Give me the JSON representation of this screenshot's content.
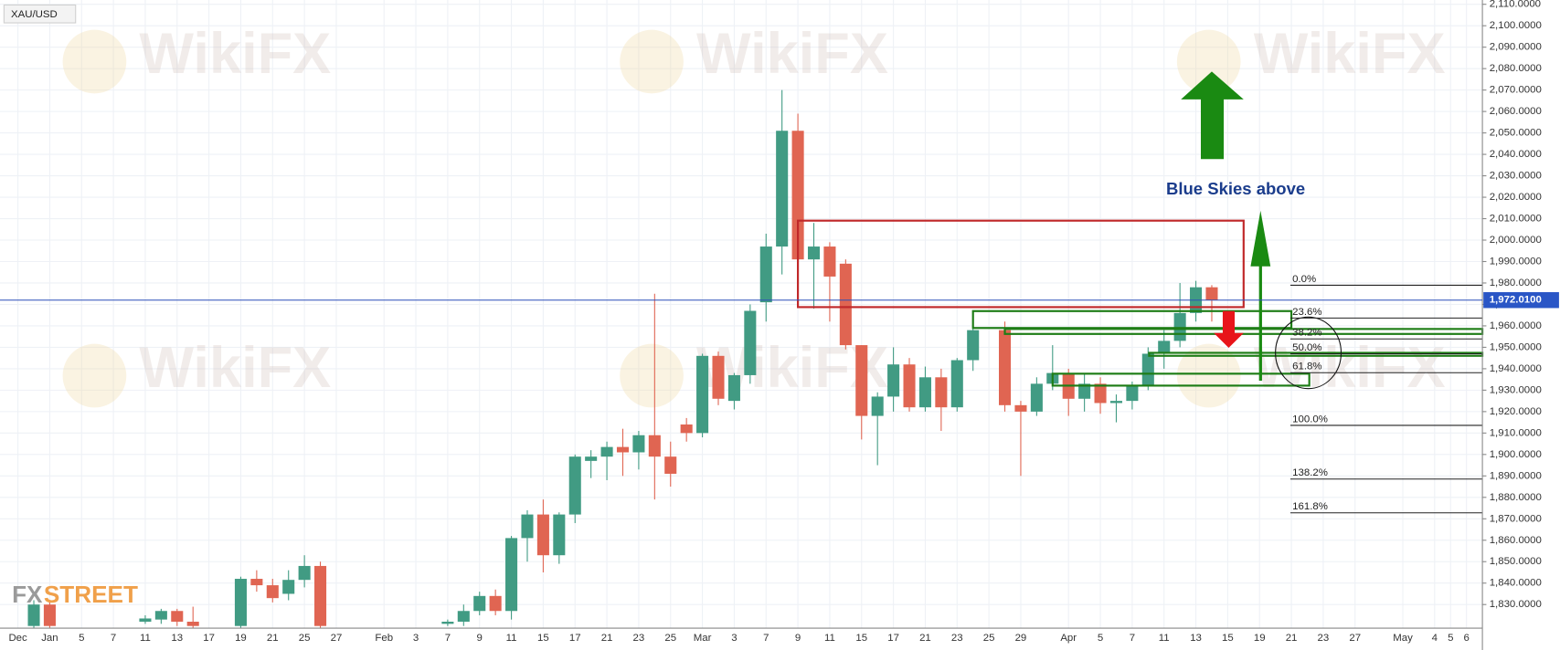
{
  "chart_data": {
    "type": "candlestick",
    "symbol": "XAU/USD",
    "watermark": "WikiFX",
    "logo_left": "FX",
    "logo_right": "STREET",
    "annotation": "Blue Skies above",
    "fib_levels": [
      "0.0%",
      "23.6%",
      "38.2%",
      "50.0%",
      "61.8%",
      "100.0%",
      "138.2%",
      "161.8%"
    ],
    "up_color": "#419b83",
    "down_color": "#e06552",
    "grid": true,
    "categories": [
      "Dec",
      null,
      "Jan",
      null,
      "5",
      null,
      "7",
      null,
      "11",
      null,
      "13",
      null,
      "17",
      null,
      "19",
      null,
      "21",
      null,
      "25",
      null,
      "27",
      null,
      null,
      "Feb",
      null,
      "3",
      null,
      "7",
      null,
      "9",
      null,
      "11",
      null,
      "15",
      null,
      "17",
      null,
      "21",
      null,
      "23",
      null,
      "25",
      null,
      "Mar",
      null,
      "3",
      null,
      "7",
      null,
      "9",
      null,
      "11",
      null,
      "15",
      null,
      "17",
      null,
      "21",
      null,
      "23",
      null,
      "25",
      null,
      "29",
      null,
      null,
      "Apr",
      null,
      "5",
      null,
      "7",
      null,
      "11",
      null,
      "13",
      null,
      "15",
      null,
      "19",
      null,
      "21",
      null,
      "23",
      null,
      "27",
      null,
      null,
      "May",
      null,
      "4",
      "5",
      "6"
    ],
    "open": [
      null,
      1820,
      1830,
      null,
      null,
      null,
      null,
      null,
      1822,
      1823,
      1827,
      1822,
      null,
      null,
      1820,
      1842,
      1839,
      1835,
      1841.5,
      1848,
      null,
      null,
      null,
      null,
      null,
      null,
      null,
      1821,
      1822,
      1827,
      1834,
      1827,
      1861,
      1872,
      1853,
      1872,
      1897,
      1899,
      1903.5,
      1901,
      1909,
      1899,
      1914,
      1910,
      1946,
      1925,
      1937,
      1971,
      1997,
      2051,
      1991,
      1997,
      1989,
      1951,
      1918,
      1927,
      1942,
      1922,
      1936,
      1922,
      1944,
      null,
      1958,
      1923,
      1920,
      1933,
      1938,
      1926,
      1933,
      1924,
      1925,
      1932,
      1947,
      1953,
      1966,
      1978,
      null,
      null,
      null,
      null,
      null,
      null,
      null,
      null,
      null,
      null,
      null,
      null,
      null,
      null,
      null,
      null
    ],
    "high": [
      null,
      1832,
      1832,
      null,
      null,
      null,
      null,
      null,
      1825,
      1828,
      1828,
      1829,
      null,
      null,
      1843,
      1846,
      1842,
      1846,
      1853,
      1850,
      null,
      null,
      null,
      null,
      null,
      null,
      null,
      1823,
      1830,
      1836,
      1837,
      1862,
      1874,
      1879,
      1873,
      1900,
      1902,
      1906,
      1912,
      1911,
      1975,
      1906,
      1917,
      1947,
      1948,
      1938,
      1970,
      2003,
      2070,
      2059,
      2008,
      1999,
      1991,
      1951,
      1929,
      1950,
      1945,
      1941,
      1940,
      1945,
      1963,
      null,
      1962,
      1925,
      1936,
      1951,
      1940,
      1938,
      1936,
      1928,
      1934,
      1950,
      1958,
      1980,
      1981,
      1979,
      null,
      null,
      null,
      null,
      null,
      null,
      null,
      null,
      null,
      null,
      null,
      null,
      null,
      null,
      null,
      null
    ],
    "low": [
      null,
      1815,
      1818,
      null,
      null,
      null,
      null,
      null,
      1821,
      1821,
      1820,
      1818,
      null,
      null,
      1818,
      1836,
      1831,
      1832,
      1838,
      1818,
      null,
      null,
      null,
      null,
      null,
      null,
      null,
      1820,
      1820,
      1825,
      1825,
      1823,
      1850,
      1845,
      1849,
      1868,
      1889,
      1888,
      1890,
      1893,
      1879,
      1885,
      1906,
      1908,
      1923,
      1921,
      1933,
      1962,
      1984,
      1970,
      1968,
      1962,
      1949,
      1907,
      1895,
      1920,
      1920,
      1920,
      1911,
      1920,
      1939,
      null,
      1920,
      1890,
      1918,
      1930,
      1918,
      1920,
      1919,
      1915,
      1921,
      1930,
      1940,
      1950,
      1962,
      1962,
      null,
      null,
      null,
      null,
      null,
      null,
      null,
      null,
      null,
      null,
      null,
      null,
      null,
      null,
      null,
      null
    ],
    "close": [
      null,
      1830,
      1820,
      null,
      null,
      null,
      null,
      null,
      1823.5,
      1827,
      1822,
      1820,
      null,
      null,
      1842,
      1839,
      1833,
      1841.5,
      1848,
      1820,
      null,
      null,
      null,
      null,
      null,
      null,
      null,
      1822,
      1827,
      1834,
      1827,
      1861,
      1872,
      1853,
      1872,
      1899,
      1899,
      1903.5,
      1901,
      1909,
      1899,
      1891,
      1910,
      1946,
      1926,
      1937,
      1967,
      1997,
      2051,
      1991,
      1997,
      1983,
      1951,
      1918,
      1927,
      1942,
      1922,
      1936,
      1922,
      1944,
      1958,
      null,
      1923,
      1920,
      1933,
      1938,
      1926,
      1933,
      1924,
      1925,
      1932,
      1947,
      1953,
      1966,
      1978,
      1972,
      null,
      null,
      null,
      null,
      null,
      null,
      null,
      null,
      null,
      null,
      null,
      null,
      null,
      null,
      null,
      null
    ],
    "last_price": {
      "value": 1972.01,
      "label": "1,972.0100"
    },
    "ylim": [
      1819,
      2112
    ],
    "yticks": [
      {
        "value": 1830,
        "label": "1,830.0000"
      },
      {
        "value": 1840,
        "label": "1,840.0000"
      },
      {
        "value": 1850,
        "label": "1,850.0000"
      },
      {
        "value": 1860,
        "label": "1,860.0000"
      },
      {
        "value": 1870,
        "label": "1,870.0000"
      },
      {
        "value": 1880,
        "label": "1,880.0000"
      },
      {
        "value": 1890,
        "label": "1,890.0000"
      },
      {
        "value": 1900,
        "label": "1,900.0000"
      },
      {
        "value": 1910,
        "label": "1,910.0000"
      },
      {
        "value": 1920,
        "label": "1,920.0000"
      },
      {
        "value": 1930,
        "label": "1,930.0000"
      },
      {
        "value": 1940,
        "label": "1,940.0000"
      },
      {
        "value": 1950,
        "label": "1,950.0000"
      },
      {
        "value": 1960,
        "label": "1,960.0000"
      },
      {
        "value": 1970,
        "label": "1,970.0000"
      },
      {
        "value": 1980,
        "label": "1,980.0000"
      },
      {
        "value": 1990,
        "label": "1,990.0000"
      },
      {
        "value": 2000,
        "label": "2,000.0000"
      },
      {
        "value": 2010,
        "label": "2,010.0000"
      },
      {
        "value": 2020,
        "label": "2,020.0000"
      },
      {
        "value": 2030,
        "label": "2,030.0000"
      },
      {
        "value": 2040,
        "label": "2,040.0000"
      },
      {
        "value": 2050,
        "label": "2,050.0000"
      },
      {
        "value": 2060,
        "label": "2,060.0000"
      },
      {
        "value": 2070,
        "label": "2,070.0000"
      },
      {
        "value": 2080,
        "label": "2,080.0000"
      },
      {
        "value": 2090,
        "label": "2,090.0000"
      },
      {
        "value": 2100,
        "label": "2,100.0000"
      },
      {
        "value": 2110,
        "label": "2,110.0000"
      }
    ]
  }
}
